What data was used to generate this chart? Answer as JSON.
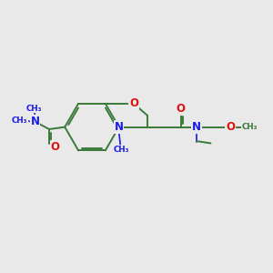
{
  "bg_color": "#e9e9e9",
  "bond_color": "#3a7a3a",
  "N_color": "#1a1aee",
  "O_color": "#dd1111",
  "bond_lw": 1.4,
  "figsize": [
    3.0,
    3.0
  ],
  "dpi": 100,
  "xlim": [
    0,
    10
  ],
  "ylim": [
    0,
    10
  ]
}
